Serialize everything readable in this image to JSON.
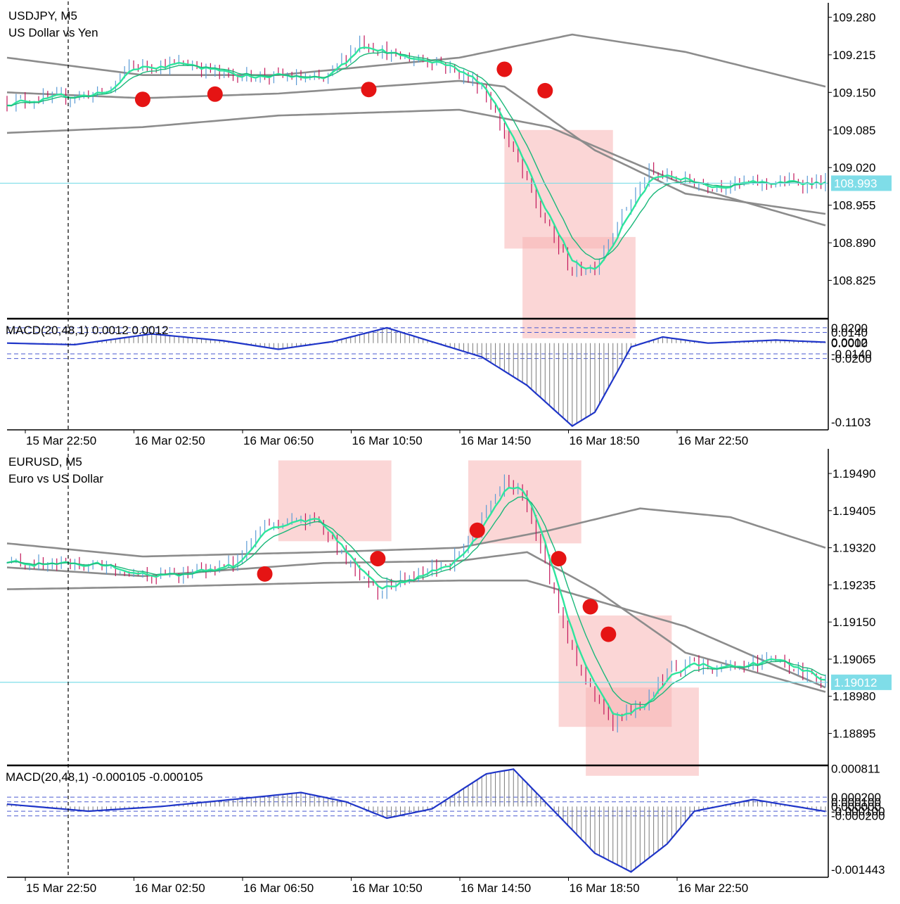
{
  "colors": {
    "candle_up": "#5b9bd5",
    "candle_down": "#c2185b",
    "ma_fast": "#2ee59d",
    "ma_slow": "#1ab87a",
    "bands": "#8c8c8c",
    "current_price_line": "#7fdde8",
    "current_price_label_bg": "#7fdde8",
    "signal_dot": "#e51414",
    "highlight_box": "#f8b4b4",
    "macd_line": "#1f35c8",
    "macd_hist": "#7a7a7a",
    "macd_levels": "#4a5ad0",
    "axis_text": "#000000"
  },
  "x_labels": [
    "15 Mar 22:50",
    "16 Mar 02:50",
    "16 Mar 06:50",
    "16 Mar 10:50",
    "16 Mar 14:50",
    "16 Mar 18:50",
    "16 Mar 22:50"
  ],
  "chart_data": [
    {
      "type": "candlestick",
      "symbol": "USDJPY, M5",
      "description": "US Dollar vs Yen",
      "y_ticks": [
        "109.280",
        "109.215",
        "109.150",
        "109.085",
        "109.020",
        "108.955",
        "108.890",
        "108.825"
      ],
      "ylim": [
        108.76,
        109.3
      ],
      "current_price": 108.993,
      "current_price_label": "108.993",
      "price_path_keypoints": [
        [
          0,
          109.135
        ],
        [
          10,
          109.14
        ],
        [
          22,
          109.15
        ],
        [
          27,
          109.195
        ],
        [
          40,
          109.2
        ],
        [
          48,
          109.18
        ],
        [
          60,
          109.178
        ],
        [
          70,
          109.17
        ],
        [
          78,
          109.24
        ],
        [
          86,
          109.21
        ],
        [
          95,
          109.205
        ],
        [
          105,
          109.16
        ],
        [
          110,
          109.08
        ],
        [
          118,
          108.94
        ],
        [
          125,
          108.84
        ],
        [
          130,
          108.85
        ],
        [
          136,
          108.94
        ],
        [
          142,
          109.01
        ],
        [
          155,
          108.99
        ],
        [
          175,
          108.995
        ],
        [
          181,
          108.993
        ]
      ],
      "bands_upper": [
        [
          0,
          109.21
        ],
        [
          30,
          109.18
        ],
        [
          60,
          109.18
        ],
        [
          100,
          109.21
        ],
        [
          125,
          109.25
        ],
        [
          150,
          109.22
        ],
        [
          181,
          109.16
        ]
      ],
      "bands_middle": [
        [
          0,
          109.15
        ],
        [
          30,
          109.14
        ],
        [
          60,
          109.148
        ],
        [
          100,
          109.17
        ],
        [
          110,
          109.16
        ],
        [
          130,
          109.05
        ],
        [
          150,
          108.975
        ],
        [
          181,
          108.94
        ]
      ],
      "bands_lower": [
        [
          0,
          109.08
        ],
        [
          30,
          109.09
        ],
        [
          60,
          109.11
        ],
        [
          100,
          109.12
        ],
        [
          120,
          109.09
        ],
        [
          150,
          108.99
        ],
        [
          181,
          108.92
        ]
      ],
      "signal_points": [
        [
          30,
          109.138
        ],
        [
          46,
          109.147
        ],
        [
          80,
          109.155
        ],
        [
          110,
          109.19
        ],
        [
          119,
          109.153
        ]
      ],
      "highlight_zones": [
        {
          "x0": 110,
          "x1": 134,
          "y0": 109.085,
          "y1": 108.88
        },
        {
          "x0": 114,
          "x1": 139,
          "y0": 108.9,
          "y1": 108.66
        }
      ],
      "macd": {
        "label": "MACD(20,48,1) 0.0012 0.0012",
        "y_ticks_top": [
          "0.0200",
          "0.0140"
        ],
        "y_ticks_mid": [
          "0.0012",
          "0.0000"
        ],
        "y_ticks_bottom": [
          "-0.0140",
          "-0.0200"
        ],
        "y_tick_min": "-0.1103",
        "ylim": [
          -0.112,
          0.03
        ],
        "levels": [
          0.02,
          0.014,
          -0.014,
          -0.02
        ],
        "keypoints": [
          [
            0,
            0.0
          ],
          [
            15,
            -0.002
          ],
          [
            32,
            0.012
          ],
          [
            48,
            0.003
          ],
          [
            60,
            -0.008
          ],
          [
            72,
            0.002
          ],
          [
            84,
            0.02
          ],
          [
            95,
            0.0
          ],
          [
            105,
            -0.018
          ],
          [
            115,
            -0.055
          ],
          [
            125,
            -0.108
          ],
          [
            130,
            -0.09
          ],
          [
            138,
            -0.005
          ],
          [
            145,
            0.008
          ],
          [
            155,
            0.0
          ],
          [
            170,
            0.004
          ],
          [
            181,
            0.0012
          ]
        ]
      }
    },
    {
      "type": "candlestick",
      "symbol": "EURUSD, M5",
      "description": "Euro vs US Dollar",
      "y_ticks": [
        "1.19490",
        "1.19405",
        "1.19320",
        "1.19235",
        "1.19150",
        "1.19065",
        "1.18980",
        "1.18895"
      ],
      "ylim": [
        1.18825,
        1.1954
      ],
      "current_price": 1.19012,
      "current_price_label": "1.19012",
      "price_path_keypoints": [
        [
          0,
          1.19285
        ],
        [
          20,
          1.1928
        ],
        [
          35,
          1.19255
        ],
        [
          50,
          1.1928
        ],
        [
          57,
          1.1937
        ],
        [
          68,
          1.19385
        ],
        [
          75,
          1.1929
        ],
        [
          82,
          1.19225
        ],
        [
          92,
          1.1926
        ],
        [
          100,
          1.193
        ],
        [
          110,
          1.1947
        ],
        [
          114,
          1.1945
        ],
        [
          120,
          1.1925
        ],
        [
          126,
          1.1905
        ],
        [
          134,
          1.1892
        ],
        [
          140,
          1.1896
        ],
        [
          148,
          1.1905
        ],
        [
          160,
          1.1905
        ],
        [
          170,
          1.1906
        ],
        [
          181,
          1.19012
        ]
      ],
      "bands_upper": [
        [
          0,
          1.1933
        ],
        [
          30,
          1.193
        ],
        [
          70,
          1.1931
        ],
        [
          100,
          1.1932
        ],
        [
          120,
          1.1936
        ],
        [
          140,
          1.1941
        ],
        [
          160,
          1.1939
        ],
        [
          181,
          1.1932
        ]
      ],
      "bands_middle": [
        [
          0,
          1.19275
        ],
        [
          30,
          1.19255
        ],
        [
          70,
          1.19285
        ],
        [
          100,
          1.1929
        ],
        [
          115,
          1.1931
        ],
        [
          130,
          1.19225
        ],
        [
          150,
          1.1908
        ],
        [
          181,
          1.1899
        ]
      ],
      "bands_lower": [
        [
          0,
          1.19225
        ],
        [
          30,
          1.1923
        ],
        [
          70,
          1.1924
        ],
        [
          100,
          1.19245
        ],
        [
          115,
          1.19245
        ],
        [
          130,
          1.192
        ],
        [
          150,
          1.1914
        ],
        [
          181,
          1.19
        ]
      ],
      "signal_points": [
        [
          57,
          1.1926
        ],
        [
          82,
          1.19295
        ],
        [
          104,
          1.1936
        ],
        [
          122,
          1.19295
        ],
        [
          129,
          1.19185
        ],
        [
          133,
          1.19122
        ]
      ],
      "highlight_zones": [
        {
          "x0": 60,
          "x1": 85,
          "y0": 1.1952,
          "y1": 1.19335
        },
        {
          "x0": 102,
          "x1": 127,
          "y0": 1.1952,
          "y1": 1.1933
        },
        {
          "x0": 122,
          "x1": 147,
          "y0": 1.19165,
          "y1": 1.1891
        },
        {
          "x0": 128,
          "x1": 153,
          "y0": 1.19,
          "y1": 1.1876
        }
      ],
      "macd": {
        "label": "MACD(20,48,1) -0.000105 -0.000105",
        "y_ticks_top": [
          "0.000811",
          "0.000200"
        ],
        "y_ticks_mid": [
          "0.000100",
          "0.000000"
        ],
        "y_ticks_bottom": [
          "-0.000100",
          "-0.000200"
        ],
        "y_tick_min": "-0.001443",
        "ylim": [
          -0.0015,
          0.00085
        ],
        "levels": [
          0.0002,
          0.0001,
          -0.0001,
          -0.0002
        ],
        "keypoints": [
          [
            0,
            5e-05
          ],
          [
            18,
            -0.0001
          ],
          [
            34,
            0.0
          ],
          [
            55,
            0.0002
          ],
          [
            65,
            0.0003
          ],
          [
            75,
            0.0001
          ],
          [
            84,
            -0.00025
          ],
          [
            94,
            -5e-05
          ],
          [
            106,
            0.0007
          ],
          [
            112,
            0.0008
          ],
          [
            120,
            0.0
          ],
          [
            130,
            -0.001
          ],
          [
            138,
            -0.0014
          ],
          [
            146,
            -0.0008
          ],
          [
            152,
            -0.0001
          ],
          [
            165,
            0.00015
          ],
          [
            181,
            -0.000105
          ]
        ]
      }
    }
  ]
}
